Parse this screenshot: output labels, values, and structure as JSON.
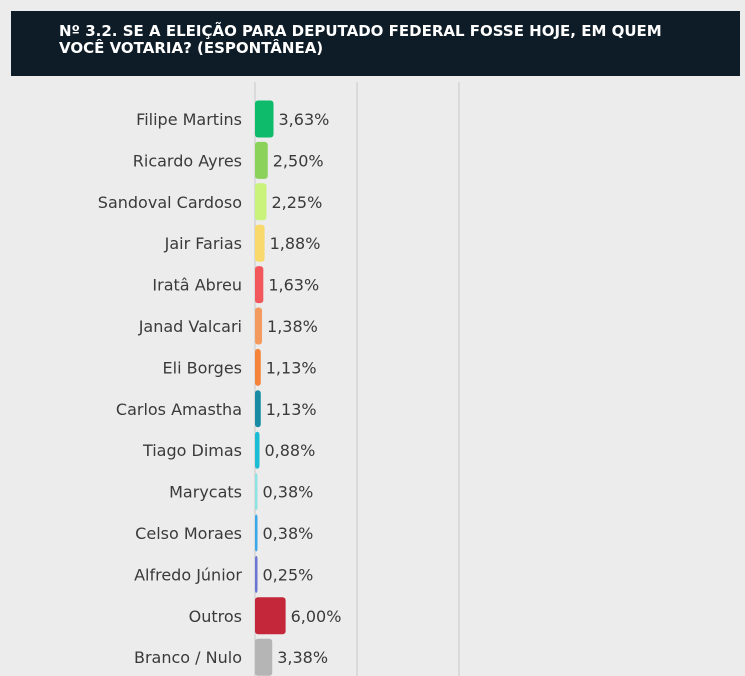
{
  "chart_data": {
    "type": "bar",
    "orientation": "horizontal",
    "title": "Nº 3.2. SE A ELEIÇÃO PARA DEPUTADO FEDERAL FOSSE HOJE, EM QUEM VOCÊ VOTARIA? (ESPONTÂNEA)",
    "categories": [
      "Filipe Martins",
      "Ricardo Ayres",
      "Sandoval Cardoso",
      "Jair Farias",
      "Iratâ Abreu",
      "Janad Valcari",
      "Eli Borges",
      "Carlos Amastha",
      "Tiago Dimas",
      "Marycats",
      "Celso Moraes",
      "Alfredo Júnior",
      "Outros",
      "Branco / Nulo"
    ],
    "values": [
      3.63,
      2.5,
      2.25,
      1.88,
      1.63,
      1.38,
      1.13,
      1.13,
      0.88,
      0.38,
      0.38,
      0.25,
      6.0,
      3.38
    ],
    "value_labels": [
      "3,63%",
      "2,50%",
      "2,25%",
      "1,88%",
      "1,63%",
      "1,38%",
      "1,13%",
      "1,13%",
      "0,88%",
      "0,38%",
      "0,38%",
      "0,25%",
      "6,00%",
      "3,38%"
    ],
    "colors": [
      "#0dbb6a",
      "#8bd25a",
      "#c9f37a",
      "#f9d96b",
      "#f2575b",
      "#f49a5e",
      "#f5843a",
      "#178aa4",
      "#1bbcd4",
      "#8ee3e3",
      "#3aa8e8",
      "#6b74d4",
      "#c4263a",
      "#b5b5b5"
    ],
    "xlim": [
      0,
      40
    ],
    "grid": true,
    "legend": "none"
  }
}
